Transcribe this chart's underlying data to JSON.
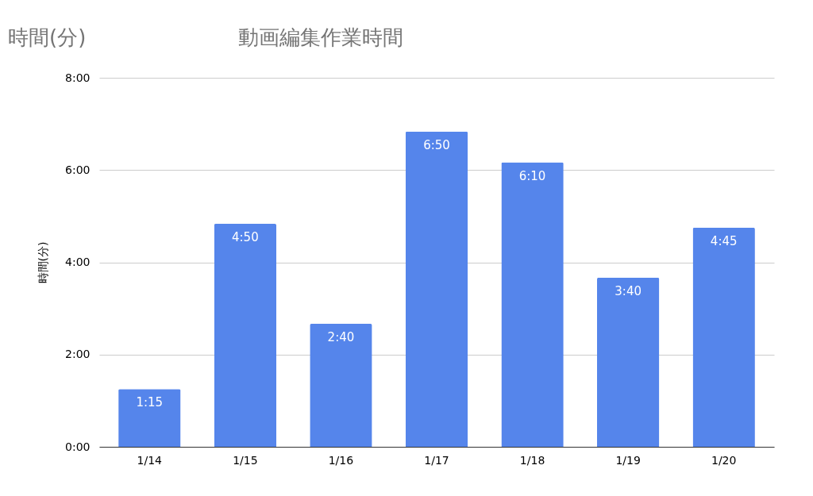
{
  "chart_data": {
    "type": "bar",
    "title": "動画編集作業時間",
    "annotations": [
      "時間(分)"
    ],
    "ylabel": "時間(分)",
    "categories": [
      "1/14",
      "1/15",
      "1/16",
      "1/17",
      "1/18",
      "1/19",
      "1/20"
    ],
    "values": [
      75,
      290,
      160,
      410,
      370,
      220,
      285
    ],
    "value_labels": [
      "1:15",
      "4:50",
      "2:40",
      "6:50",
      "6:10",
      "3:40",
      "4:45"
    ],
    "color": "#5585eb",
    "ylim": [
      0,
      480
    ],
    "yticks": [
      {
        "value": 0,
        "label": "0:00"
      },
      {
        "value": 120,
        "label": "2:00"
      },
      {
        "value": 240,
        "label": "4:00"
      },
      {
        "value": 360,
        "label": "6:00"
      },
      {
        "value": 480,
        "label": "8:00"
      }
    ],
    "grid": "y",
    "legend": false
  }
}
